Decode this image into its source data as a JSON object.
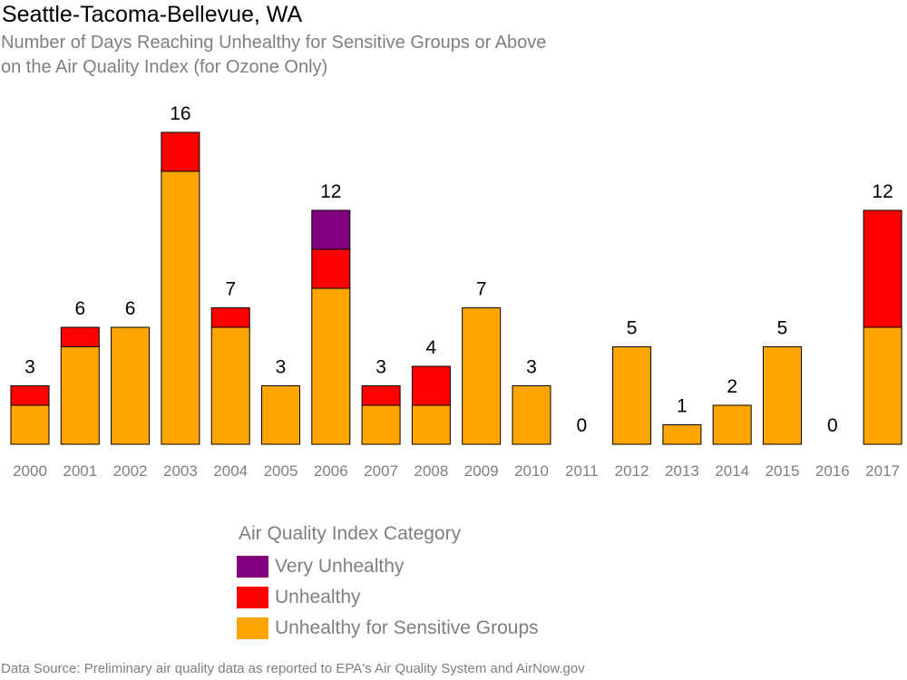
{
  "header": {
    "title": "Seattle-Tacoma-Bellevue, WA",
    "subtitle_line1": "Number of Days Reaching Unhealthy for Sensitive Groups or Above",
    "subtitle_line2": "on the Air Quality Index (for Ozone Only)"
  },
  "legend": {
    "title": "Air Quality Index Category",
    "items": [
      {
        "label": "Very Unhealthy",
        "color": "#800080"
      },
      {
        "label": "Unhealthy",
        "color": "#ff0000"
      },
      {
        "label": "Unhealthy for Sensitive Groups",
        "color": "#ffa500"
      }
    ]
  },
  "footer": {
    "source": "Data Source: Preliminary air quality data as reported to EPA's Air Quality System and AirNow.gov"
  },
  "chart_data": {
    "type": "bar",
    "stacked": true,
    "categories": [
      "2000",
      "2001",
      "2002",
      "2003",
      "2004",
      "2005",
      "2006",
      "2007",
      "2008",
      "2009",
      "2010",
      "2011",
      "2012",
      "2013",
      "2014",
      "2015",
      "2016",
      "2017"
    ],
    "series": [
      {
        "name": "Unhealthy for Sensitive Groups",
        "color": "#ffa500",
        "values": [
          2,
          5,
          6,
          14,
          6,
          3,
          8,
          2,
          2,
          7,
          3,
          0,
          5,
          1,
          2,
          5,
          0,
          6
        ]
      },
      {
        "name": "Unhealthy",
        "color": "#ff0000",
        "values": [
          1,
          1,
          0,
          2,
          1,
          0,
          2,
          1,
          2,
          0,
          0,
          0,
          0,
          0,
          0,
          0,
          0,
          6
        ]
      },
      {
        "name": "Very Unhealthy",
        "color": "#800080",
        "values": [
          0,
          0,
          0,
          0,
          0,
          0,
          2,
          0,
          0,
          0,
          0,
          0,
          0,
          0,
          0,
          0,
          0,
          0
        ]
      }
    ],
    "totals": [
      3,
      6,
      6,
      16,
      7,
      3,
      12,
      3,
      4,
      7,
      3,
      0,
      5,
      1,
      2,
      5,
      0,
      12
    ],
    "ylim": [
      0,
      16
    ],
    "grid": false,
    "legend_position": "bottom"
  }
}
